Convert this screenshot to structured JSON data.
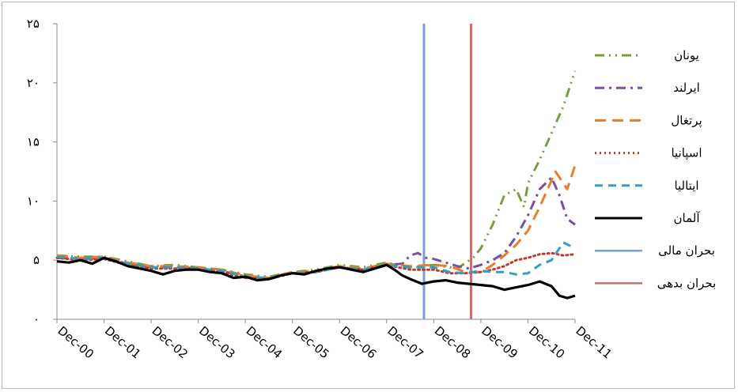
{
  "chart_data": {
    "type": "line",
    "title": "",
    "xlabel": "",
    "ylabel": "",
    "ylim": [
      0,
      25
    ],
    "y_ticks": [
      0,
      5,
      10,
      15,
      20,
      25
    ],
    "y_tick_labels": [
      "۰",
      "۵",
      "۱۰",
      "۱۵",
      "۲۰",
      "۲۵"
    ],
    "x_tick_labels": [
      "Dec-00",
      "Dec-01",
      "Dec-02",
      "Dec-03",
      "Dec-04",
      "Dec-05",
      "Dec-06",
      "Dec-07",
      "Dec-08",
      "Dec-09",
      "Dec-10",
      "Dec-11"
    ],
    "x_tick_positions": [
      0,
      12,
      24,
      36,
      48,
      60,
      72,
      84,
      96,
      108,
      120,
      132
    ],
    "x_unit": "months since Dec-00",
    "grid": false,
    "legend_position": "right",
    "series": [
      {
        "name": "یونان",
        "color": "#77a03c",
        "style": "dash-dot-dot",
        "x": [
          0,
          6,
          12,
          18,
          24,
          30,
          36,
          42,
          48,
          54,
          60,
          66,
          72,
          78,
          84,
          90,
          96,
          102,
          106,
          108,
          111,
          114,
          117,
          119,
          120,
          123,
          125,
          127,
          129,
          131,
          132
        ],
        "y": [
          5.4,
          5.3,
          5.3,
          4.9,
          4.5,
          4.6,
          4.4,
          4.2,
          3.8,
          3.6,
          4.0,
          4.2,
          4.6,
          4.4,
          4.8,
          4.4,
          4.6,
          4.3,
          5.2,
          6.0,
          8.0,
          10.5,
          11.0,
          9.5,
          11.5,
          13.5,
          15.0,
          16.5,
          18.0,
          20.0,
          21.0
        ]
      },
      {
        "name": "ایرلند",
        "color": "#7a4ea0",
        "style": "dash-dot",
        "x": [
          0,
          6,
          12,
          18,
          24,
          30,
          36,
          42,
          48,
          54,
          60,
          66,
          72,
          78,
          84,
          88,
          90,
          92,
          94,
          96,
          99,
          102,
          105,
          108,
          111,
          114,
          117,
          120,
          123,
          126,
          128,
          130,
          132
        ],
        "y": [
          5.2,
          5.1,
          5.2,
          4.7,
          4.4,
          4.4,
          4.3,
          4.1,
          3.6,
          3.4,
          3.9,
          4.0,
          4.4,
          4.2,
          4.6,
          4.7,
          5.4,
          5.6,
          5.2,
          5.1,
          4.8,
          4.5,
          4.3,
          4.6,
          5.0,
          5.6,
          7.0,
          8.8,
          11.0,
          12.0,
          10.5,
          8.5,
          8.0
        ]
      },
      {
        "name": "پرتغال",
        "color": "#e87d2a",
        "style": "long-dash",
        "x": [
          0,
          6,
          12,
          18,
          24,
          30,
          36,
          42,
          48,
          54,
          60,
          66,
          72,
          78,
          84,
          90,
          96,
          100,
          104,
          108,
          111,
          114,
          117,
          120,
          123,
          125,
          127,
          130,
          132
        ],
        "y": [
          5.4,
          5.2,
          5.3,
          4.8,
          4.5,
          4.5,
          4.4,
          4.2,
          3.7,
          3.5,
          4.0,
          4.1,
          4.5,
          4.3,
          4.7,
          4.5,
          4.6,
          4.5,
          4.0,
          4.0,
          4.6,
          5.4,
          6.3,
          7.5,
          9.5,
          11.0,
          12.5,
          11.0,
          13.0
        ]
      },
      {
        "name": "اسپانیا",
        "color": "#c0392b",
        "style": "dotted",
        "x": [
          0,
          6,
          12,
          18,
          24,
          30,
          36,
          42,
          48,
          54,
          60,
          66,
          72,
          78,
          84,
          90,
          96,
          100,
          104,
          108,
          111,
          114,
          117,
          120,
          123,
          126,
          129,
          132
        ],
        "y": [
          5.2,
          5.0,
          5.1,
          4.6,
          4.3,
          4.3,
          4.2,
          4.0,
          3.5,
          3.4,
          3.9,
          4.0,
          4.4,
          4.2,
          4.6,
          4.2,
          4.2,
          3.9,
          3.9,
          4.0,
          4.2,
          4.5,
          5.0,
          5.2,
          5.5,
          5.6,
          5.4,
          5.5
        ]
      },
      {
        "name": "ایتالیا",
        "color": "#31a0c0",
        "style": "dashed",
        "x": [
          0,
          6,
          12,
          18,
          24,
          30,
          36,
          42,
          48,
          54,
          60,
          66,
          72,
          78,
          84,
          90,
          96,
          100,
          104,
          108,
          111,
          114,
          117,
          120,
          123,
          126,
          129,
          132
        ],
        "y": [
          5.3,
          5.1,
          5.2,
          4.7,
          4.4,
          4.4,
          4.3,
          4.1,
          3.6,
          3.5,
          3.9,
          4.0,
          4.4,
          4.2,
          4.6,
          4.4,
          4.4,
          4.0,
          3.9,
          4.1,
          4.0,
          4.0,
          3.8,
          3.9,
          4.6,
          5.0,
          6.5,
          6.0
        ]
      },
      {
        "name": "آلمان",
        "color": "#000000",
        "style": "solid",
        "x": [
          0,
          3,
          6,
          9,
          12,
          15,
          18,
          21,
          24,
          27,
          30,
          33,
          36,
          39,
          42,
          45,
          48,
          51,
          54,
          57,
          60,
          63,
          66,
          69,
          72,
          75,
          78,
          81,
          84,
          86,
          88,
          90,
          93,
          96,
          99,
          102,
          105,
          108,
          111,
          114,
          117,
          120,
          123,
          126,
          128,
          130,
          132
        ],
        "y": [
          4.9,
          4.8,
          5.0,
          4.7,
          5.2,
          4.9,
          4.5,
          4.3,
          4.1,
          3.8,
          4.1,
          4.2,
          4.2,
          4.0,
          3.9,
          3.5,
          3.6,
          3.3,
          3.4,
          3.7,
          3.9,
          3.8,
          4.1,
          4.3,
          4.4,
          4.2,
          4.0,
          4.3,
          4.6,
          4.2,
          3.7,
          3.4,
          3.0,
          3.2,
          3.3,
          3.1,
          3.0,
          2.9,
          2.8,
          2.5,
          2.7,
          2.9,
          3.2,
          2.8,
          2.0,
          1.8,
          2.0
        ]
      }
    ],
    "markers": [
      {
        "name": "بحران مالی",
        "x": 93.5,
        "color": "#7b9fd4"
      },
      {
        "name": "بحران بدهی",
        "x": 105.5,
        "color": "#d46a6a"
      }
    ]
  }
}
